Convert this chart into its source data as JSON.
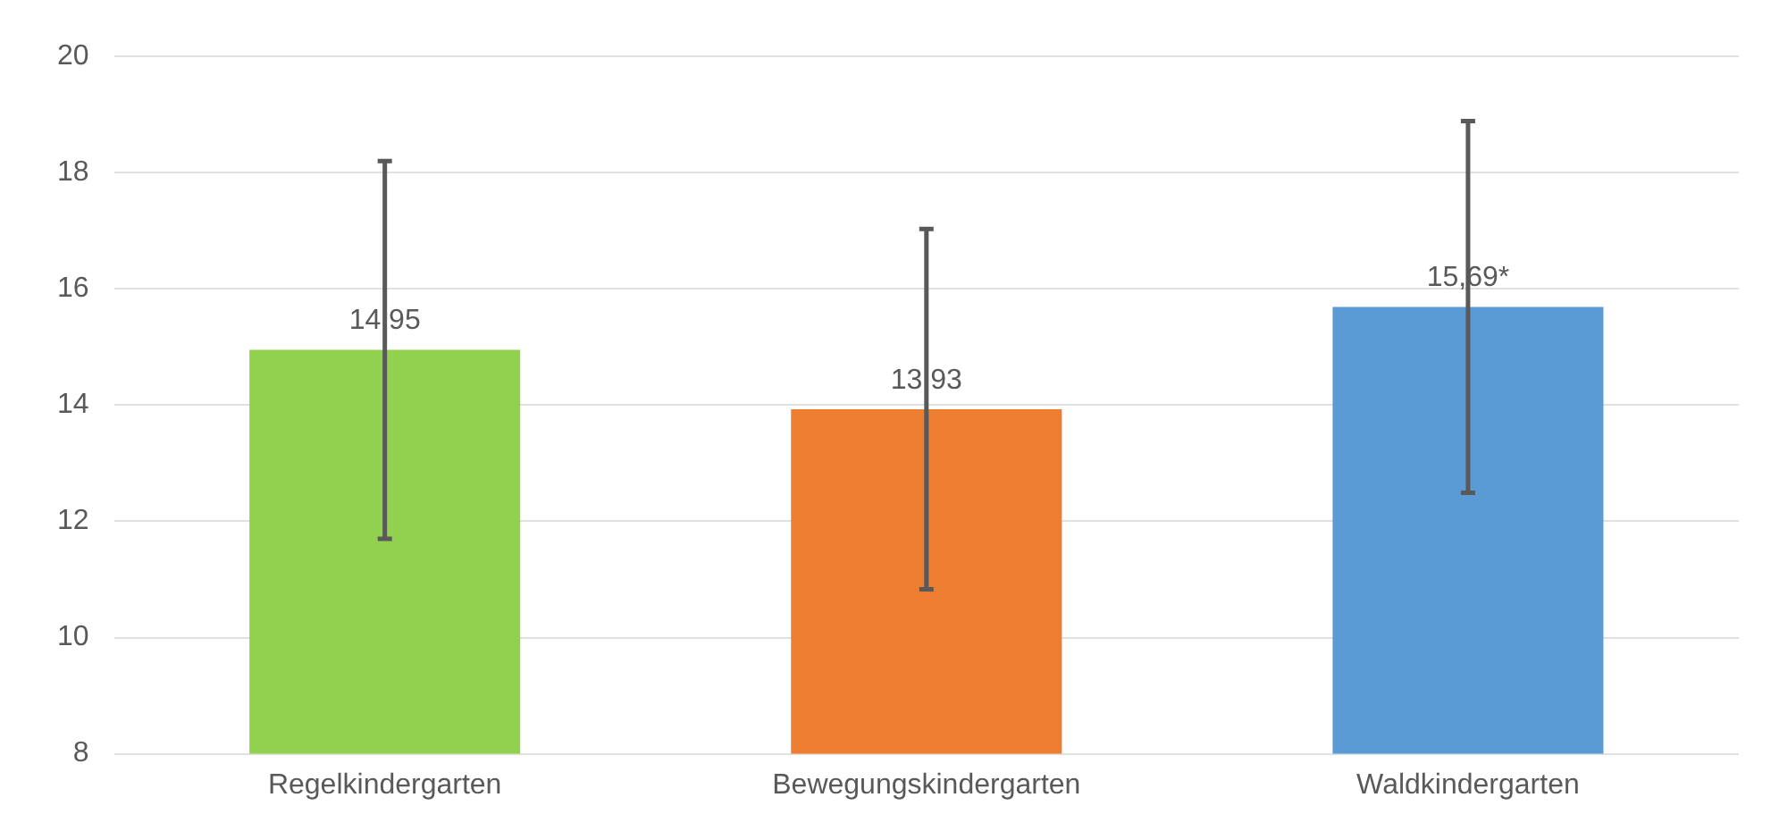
{
  "chart_data": {
    "type": "bar",
    "categories": [
      "Regelkindergarten",
      "Bewegungskindergarten",
      "Waldkindergarten"
    ],
    "values": [
      14.95,
      13.93,
      15.69
    ],
    "colors": [
      "#92d050",
      "#ed7d31",
      "#5b9bd5"
    ],
    "errors": [
      3.25,
      3.1,
      3.2
    ],
    "value_labels": [
      "14,95",
      "13,93",
      "15,69*"
    ],
    "ylim": [
      8,
      20
    ],
    "yticks": [
      8,
      10,
      12,
      14,
      16,
      18,
      20
    ],
    "grid": "y"
  }
}
